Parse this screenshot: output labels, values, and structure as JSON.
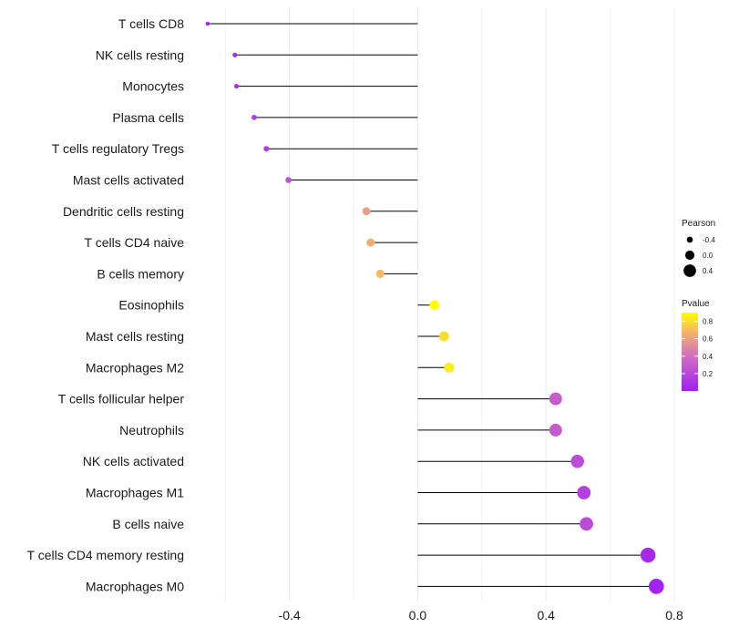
{
  "chart_data": {
    "type": "lollipop",
    "title": "",
    "xlabel": "",
    "ylabel": "",
    "xlim": [
      -0.7,
      0.8
    ],
    "xticks": [
      -0.4,
      0.0,
      0.4,
      0.8
    ],
    "xtick_labels": [
      "-0.4",
      "0.0",
      "0.4",
      "0.8"
    ],
    "grid": true,
    "baseline": 0,
    "categories": [
      "T cells CD8",
      "NK cells resting",
      "Monocytes",
      "Plasma cells",
      "T cells regulatory  Tregs ",
      "Mast cells activated",
      "Dendritic cells resting",
      "T cells CD4 naive",
      "B cells memory",
      "Eosinophils",
      "Mast cells resting",
      "Macrophages M2",
      "T cells follicular helper",
      "Neutrophils",
      "NK cells activated",
      "Macrophages M1",
      "B cells naive",
      "T cells CD4 memory resting",
      "Macrophages M0"
    ],
    "pearson": [
      -0.655,
      -0.57,
      -0.565,
      -0.51,
      -0.472,
      -0.403,
      -0.16,
      -0.147,
      -0.117,
      0.052,
      0.082,
      0.098,
      0.43,
      0.43,
      0.498,
      0.518,
      0.526,
      0.718,
      0.744
    ],
    "pvalue": [
      0.02,
      0.04,
      0.08,
      0.12,
      0.13,
      0.25,
      0.6,
      0.65,
      0.7,
      0.9,
      0.8,
      0.85,
      0.3,
      0.3,
      0.22,
      0.16,
      0.22,
      0.05,
      0.02
    ],
    "legend": {
      "position": "right",
      "size_title": "Pearson",
      "size_entries": [
        {
          "label": "-0.4",
          "value": -0.4
        },
        {
          "label": "0.0",
          "value": 0.0
        },
        {
          "label": "0.4",
          "value": 0.4
        }
      ],
      "color_title": "Pvalue",
      "color_ticks": [
        {
          "label": "0.8",
          "value": 0.8
        },
        {
          "label": "0.6",
          "value": 0.6
        },
        {
          "label": "0.4",
          "value": 0.4
        },
        {
          "label": "0.2",
          "value": 0.2
        }
      ],
      "color_range": [
        0.0,
        0.9
      ]
    },
    "colors": {
      "low": "#a020f0",
      "mid": "#d070c0",
      "high": "#ffff00",
      "stem": "#000000",
      "grid": "#ebebeb"
    }
  }
}
